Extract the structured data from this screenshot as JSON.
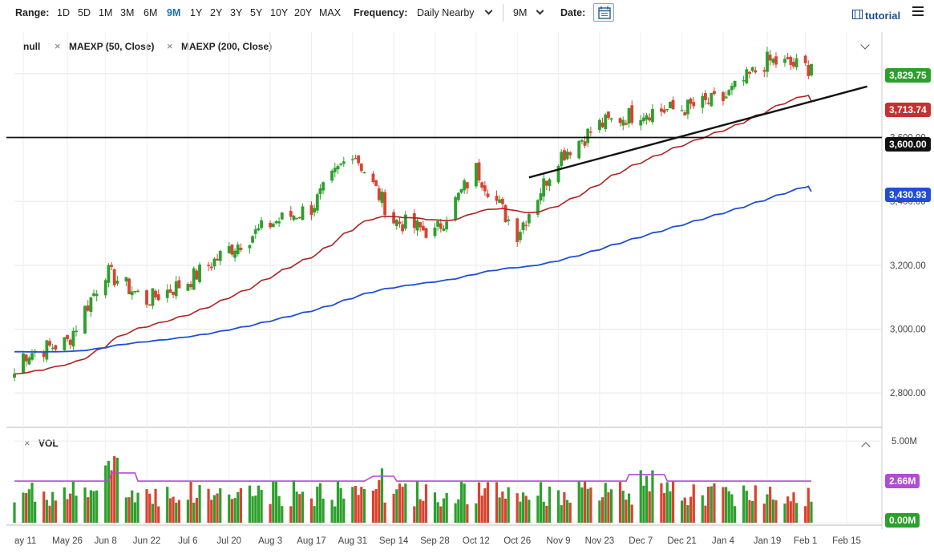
{
  "toolbar": {
    "range_label": "Range:",
    "ranges": [
      "1D",
      "5D",
      "1M",
      "3M",
      "6M",
      "9M",
      "1Y",
      "2Y",
      "3Y",
      "5Y",
      "10Y",
      "20Y",
      "MAX"
    ],
    "active_range": "9M",
    "frequency_label": "Frequency:",
    "frequency_value": "Daily Nearby",
    "period_value": "9M",
    "date_label": "Date:",
    "tutorial_label": "tutorial"
  },
  "legend": {
    "symbol": "null",
    "studies": [
      "MAEXP (50, Close)",
      "MAEXP (200, Close)"
    ],
    "volume_label": "VOL"
  },
  "colors": {
    "up": "#2ca02c",
    "down": "#d9432f",
    "ma50": "#b22222",
    "ma200": "#1f4fd6",
    "vol_avg": "#b44bd6",
    "accent": "#1a6bd1"
  },
  "price_axis": {
    "ticks": [
      "3,800.00",
      "3,600.00",
      "3,400.00",
      "3,200.00",
      "3,000.00",
      "2,800.00"
    ],
    "tick_values": [
      3800,
      3600,
      3400,
      3200,
      3000,
      2800
    ]
  },
  "volume_axis": {
    "ticks": [
      "5.00M",
      "0.00M"
    ]
  },
  "badges": {
    "last_price": "3,829.75",
    "ma50": "3,713.74",
    "level": "3,600.00",
    "ma200": "3,430.93",
    "volume_avg": "2.66M"
  },
  "x_axis": {
    "labels": [
      "ay 11",
      "May 26",
      "Jun 8",
      "Jun 22",
      "Jul 6",
      "Jul 20",
      "Aug 3",
      "Aug 17",
      "Aug 31",
      "Sep 14",
      "Sep 28",
      "Oct 12",
      "Oct 26",
      "Nov 9",
      "Nov 23",
      "Dec 7",
      "Dec 21",
      "Jan 4",
      "Jan 19",
      "Feb 1",
      "Feb 15"
    ]
  },
  "chart_data": {
    "type": "candlestick",
    "x": [
      "2020-05-11",
      "2020-05-26",
      "2020-06-08",
      "2020-06-22",
      "2020-07-06",
      "2020-07-20",
      "2020-08-03",
      "2020-08-17",
      "2020-08-31",
      "2020-09-14",
      "2020-09-28",
      "2020-10-12",
      "2020-10-26",
      "2020-11-09",
      "2020-11-23",
      "2020-12-07",
      "2020-12-21",
      "2021-01-04",
      "2021-01-19",
      "2021-02-01"
    ],
    "close": [
      2920,
      2960,
      3180,
      3090,
      3150,
      3250,
      3330,
      3380,
      3560,
      3340,
      3300,
      3500,
      3300,
      3540,
      3640,
      3680,
      3690,
      3720,
      3840,
      3820
    ],
    "last_price": 3829.75,
    "ma50_last": 3713.74,
    "ma200_last": 3430.93,
    "horizontal_level": 3600,
    "trendline": [
      [
        "2020-10-30",
        3475
      ],
      [
        "2021-02-22",
        3760
      ]
    ],
    "ylim": [
      2700,
      3880
    ],
    "volume_ylim": [
      0,
      5.5
    ],
    "volume_avg_last": 2.66
  }
}
